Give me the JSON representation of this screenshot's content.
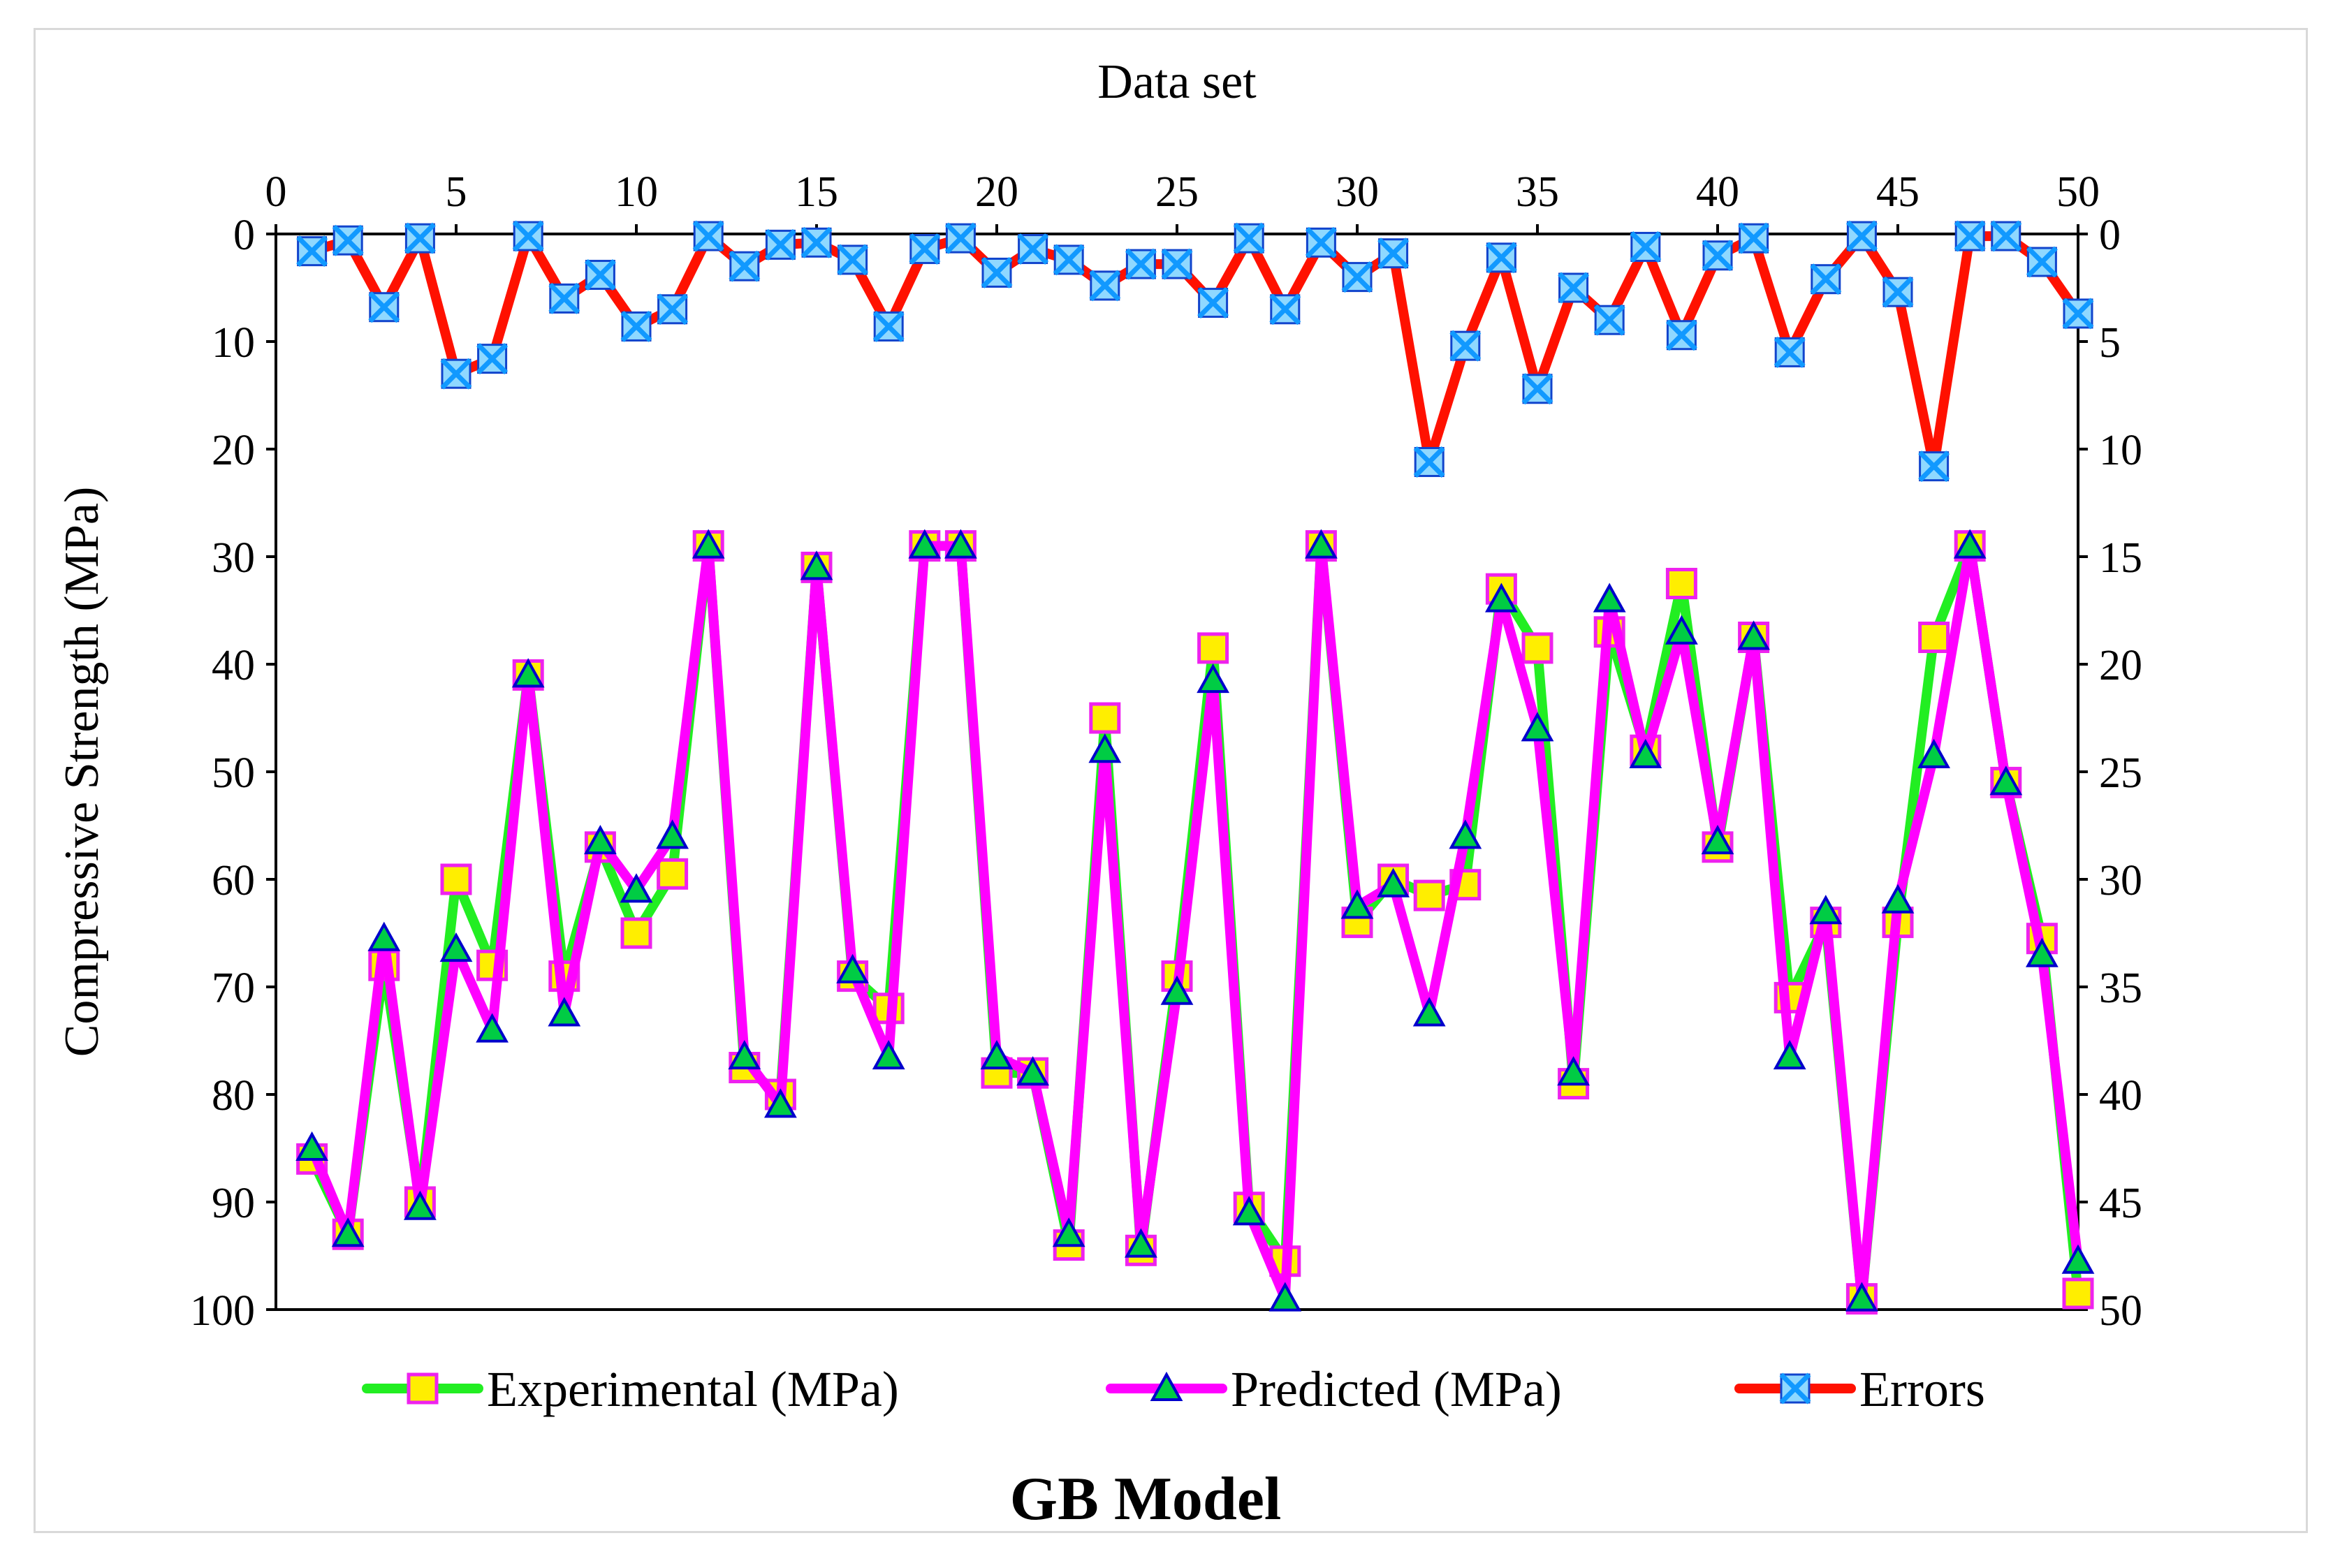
{
  "chart_data": {
    "type": "line",
    "title": "GB Model",
    "x_axis_top": {
      "label": "Data set",
      "range": [
        0,
        50
      ],
      "ticks": [
        "0",
        "5",
        "10",
        "15",
        "20",
        "25",
        "30",
        "35",
        "40",
        "45",
        "50"
      ]
    },
    "y_left": {
      "label": "Compressive Strength (MPa)",
      "range": [
        0,
        100
      ],
      "inverted": true,
      "ticks": [
        "0",
        "10",
        "20",
        "30",
        "40",
        "50",
        "60",
        "70",
        "80",
        "90",
        "100"
      ]
    },
    "y_right": {
      "range": [
        0,
        50
      ],
      "inverted": true,
      "ticks": [
        "0",
        "5",
        "10",
        "15",
        "20",
        "25",
        "30",
        "35",
        "40",
        "45",
        "50"
      ]
    },
    "x": [
      1,
      2,
      3,
      4,
      5,
      6,
      7,
      8,
      9,
      10,
      11,
      12,
      13,
      14,
      15,
      16,
      17,
      18,
      19,
      20,
      21,
      22,
      23,
      24,
      25,
      26,
      27,
      28,
      29,
      30,
      31,
      32,
      33,
      34,
      35,
      36,
      37,
      38,
      39,
      40,
      41,
      42,
      43,
      44,
      45,
      46,
      47,
      48,
      49,
      50
    ],
    "series": [
      {
        "name": "Experimental (MPa)",
        "axis": "left",
        "line_color": "#22ee22",
        "marker": "square",
        "marker_color": "#ffee00",
        "marker_edge": "#ee22ee",
        "values": [
          86,
          93,
          68,
          90,
          60,
          68,
          41,
          69,
          57,
          65,
          59.5,
          29,
          77.5,
          80,
          31,
          69,
          72,
          29,
          29,
          78,
          78,
          94,
          45,
          94.5,
          69,
          38.5,
          90.5,
          95.5,
          29,
          64,
          60,
          61.5,
          60.5,
          33,
          38.5,
          79,
          37,
          48,
          32.5,
          57,
          37.5,
          71,
          64,
          99,
          64,
          37.5,
          29,
          51,
          65.5,
          98.5
        ]
      },
      {
        "name": "Predicted (MPa)",
        "axis": "left",
        "line_color": "#ff00ff",
        "marker": "triangle",
        "marker_color": "#00cc44",
        "marker_edge": "#0000cc",
        "values": [
          85,
          93,
          65.5,
          90.5,
          66.5,
          74,
          41,
          72.5,
          56.5,
          61,
          56,
          29,
          76.5,
          81,
          31,
          68.5,
          76.5,
          29,
          29,
          76.5,
          78,
          93,
          48,
          94,
          70.5,
          41.5,
          91,
          99,
          29,
          62.5,
          60.5,
          72.5,
          56,
          34,
          46,
          78,
          34,
          48.5,
          37,
          56.5,
          37.5,
          76.5,
          63,
          99,
          62,
          48.5,
          29,
          51,
          67,
          95.5
        ]
      },
      {
        "name": "Errors",
        "axis": "right",
        "line_color": "#ff1100",
        "marker": "x-box",
        "marker_color": "#1199ff",
        "marker_edge": "#1144cc",
        "values": [
          0.8,
          0.3,
          3.4,
          0.2,
          6.5,
          5.8,
          0.1,
          3,
          1.9,
          4.3,
          3.5,
          0.1,
          1.5,
          0.5,
          0.4,
          1.2,
          4.3,
          0.7,
          0.2,
          1.8,
          0.7,
          1.2,
          2.4,
          1.4,
          1.4,
          3.2,
          0.2,
          3.5,
          0.4,
          2,
          0.9,
          10.6,
          5.2,
          1.1,
          7.2,
          2.5,
          4,
          0.6,
          4.7,
          1,
          0.2,
          5.5,
          2.1,
          0.1,
          2.7,
          10.8,
          0.1,
          0.1,
          1.3,
          3.7
        ]
      }
    ],
    "legend": {
      "position": "bottom",
      "entries": [
        "Experimental (MPa)",
        "Predicted (MPa)",
        "Errors"
      ]
    }
  }
}
